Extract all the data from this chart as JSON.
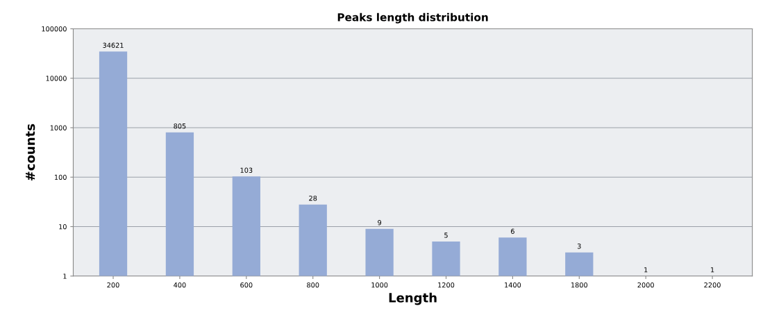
{
  "chart_data": {
    "type": "bar",
    "title": "Peaks length distribution",
    "xlabel": "Length",
    "ylabel": "#counts",
    "categories": [
      "200",
      "400",
      "600",
      "800",
      "1000",
      "1200",
      "1400",
      "1800",
      "2000",
      "2200"
    ],
    "values": [
      34621,
      805,
      103,
      28,
      9,
      5,
      6,
      3,
      1,
      1
    ],
    "color": "#95abd6",
    "log": true,
    "ylim": [
      1,
      100000
    ],
    "yticks": [
      1,
      10,
      100,
      1000,
      10000,
      100000
    ],
    "grid": "y",
    "data_labels": true
  }
}
